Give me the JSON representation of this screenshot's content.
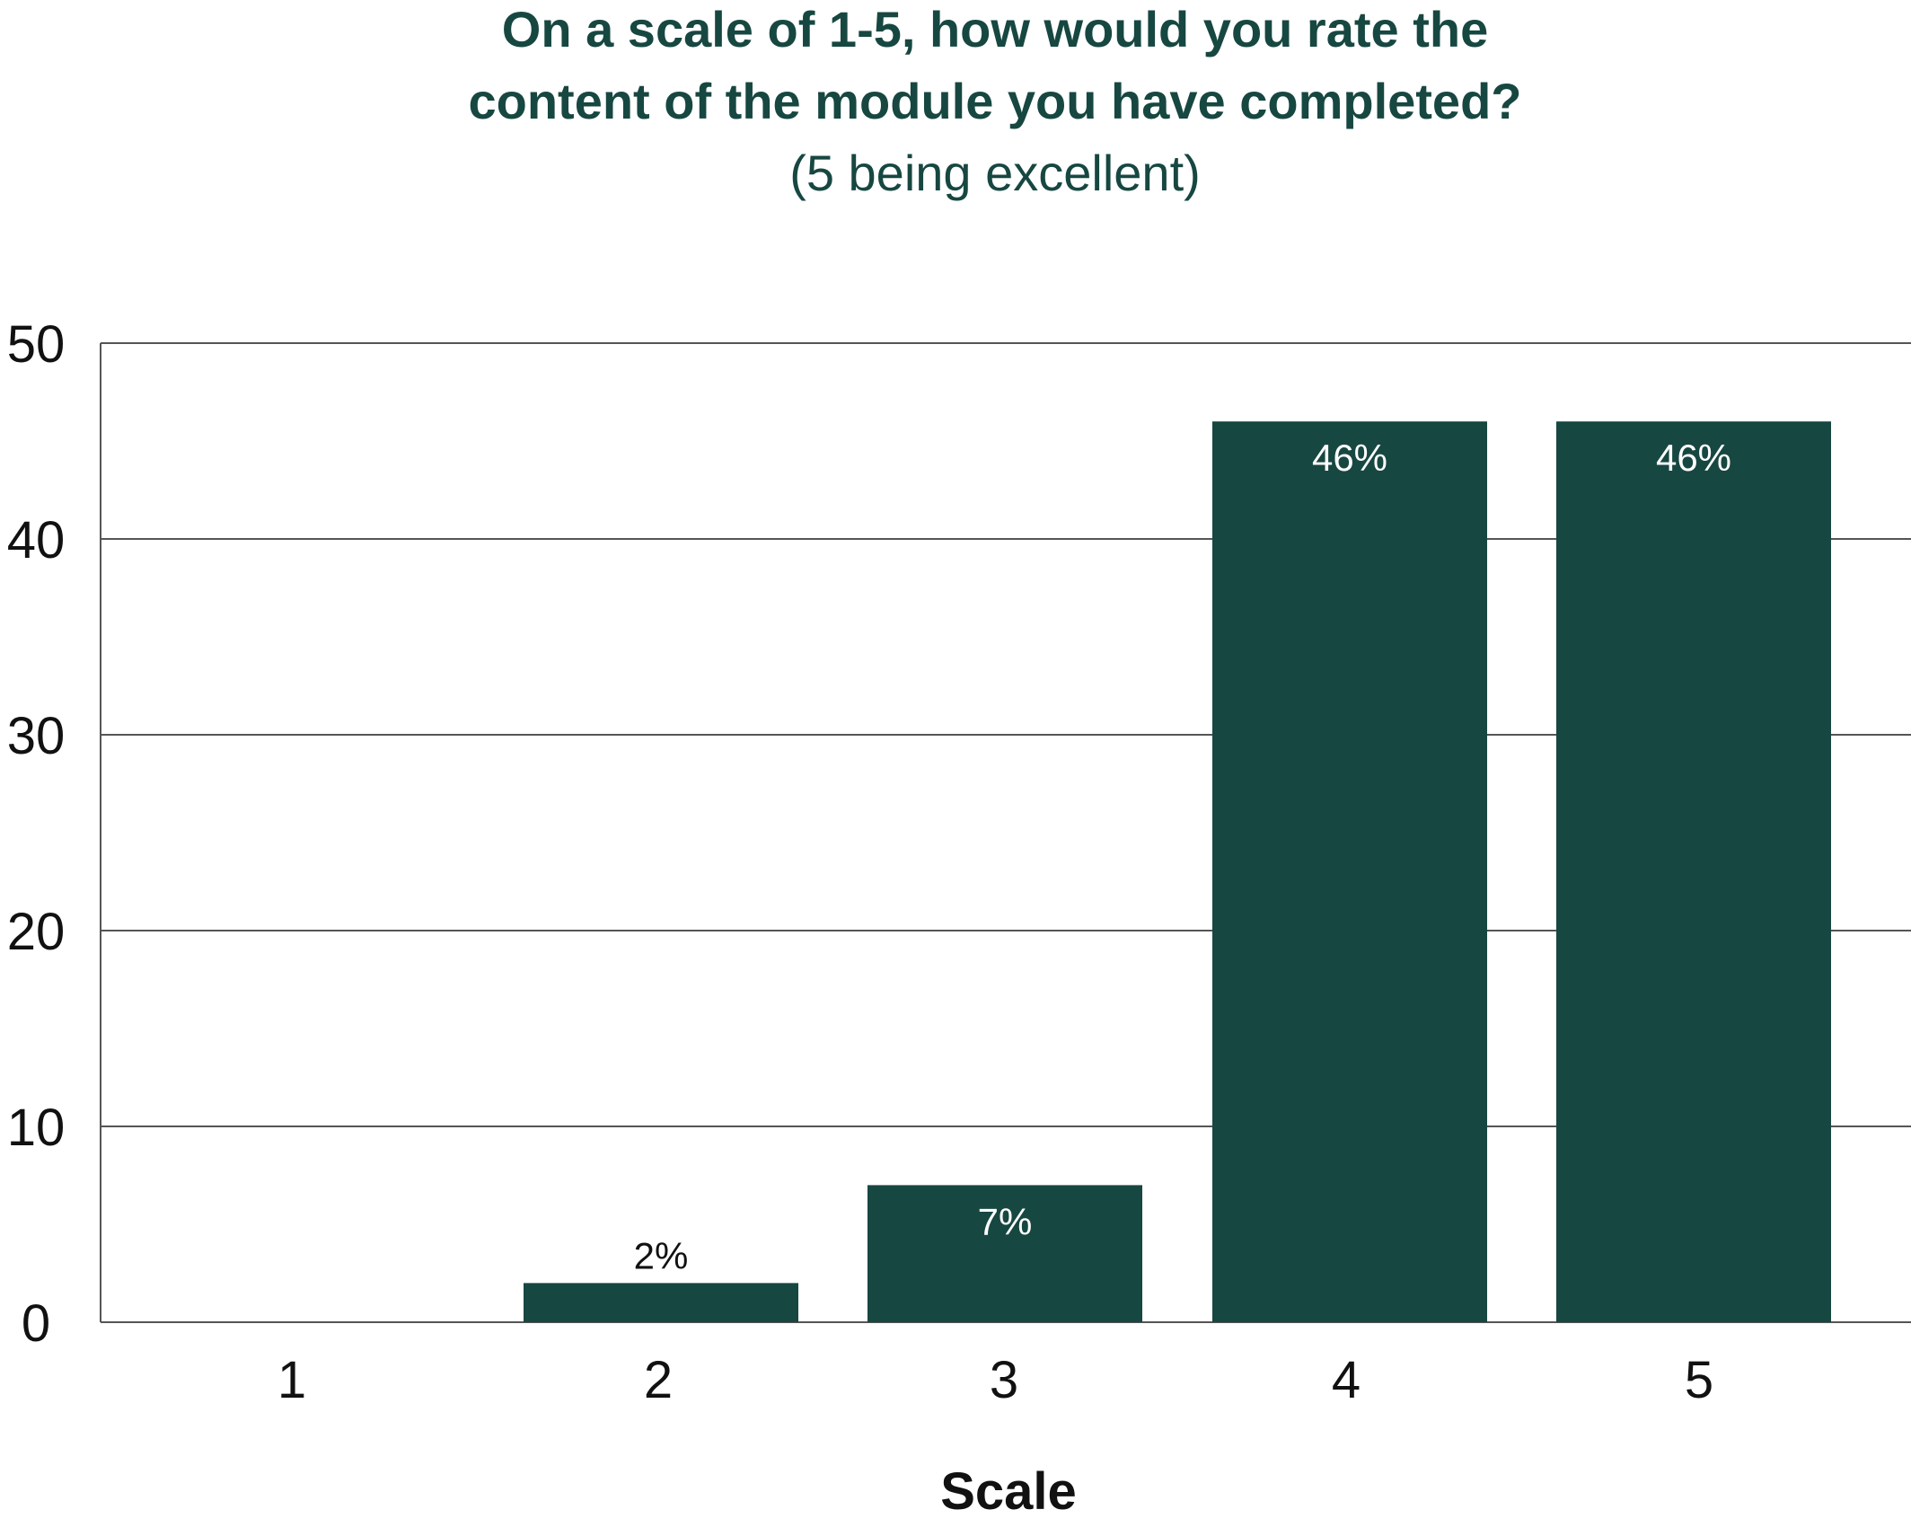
{
  "colors": {
    "bar": "#174741",
    "title": "#174741",
    "grid": "#555555",
    "label_inside": "#ffffff",
    "label_outside": "#111111"
  },
  "chart_data": {
    "type": "bar",
    "title_lines": [
      "On a scale of 1-5, how would you rate the",
      "content of the module you have completed?"
    ],
    "subtitle": "(5 being excellent)",
    "xlabel": "Scale",
    "ylabel": "",
    "categories": [
      "1",
      "2",
      "3",
      "4",
      "5"
    ],
    "values": [
      0,
      2,
      7,
      46,
      46
    ],
    "data_labels": [
      "",
      "2%",
      "7%",
      "46%",
      "46%"
    ],
    "ylim": [
      0,
      50
    ],
    "yticks": [
      0,
      10,
      20,
      30,
      40,
      50
    ],
    "grid": true,
    "legend": "none"
  }
}
